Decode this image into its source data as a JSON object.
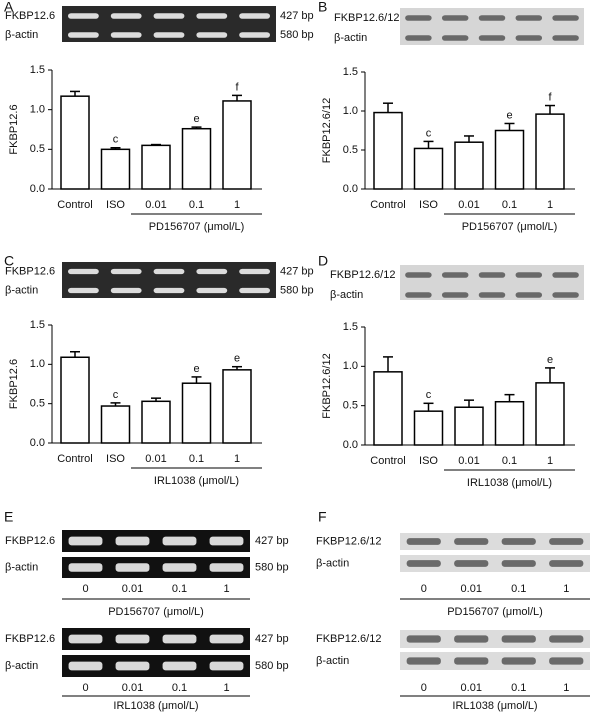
{
  "panel_letters": [
    "A",
    "B",
    "C",
    "D",
    "E",
    "F"
  ],
  "chart_data": [
    {
      "type": "bar",
      "ylabel": "FKBP12.6",
      "categories": [
        "Control",
        "ISO",
        "0.01",
        "0.1",
        "1"
      ],
      "values": [
        1.17,
        0.5,
        0.55,
        0.76,
        1.11
      ],
      "errors": [
        0.06,
        0.02,
        0.01,
        0.02,
        0.07
      ],
      "annotations": [
        null,
        "c",
        null,
        "e",
        "f"
      ],
      "group_label": "PD156707 (μmol/L)",
      "ylim": [
        0,
        1.5
      ],
      "yticks": [
        {
          "value": 0,
          "label": "0.0"
        },
        0.5,
        {
          "value": 1,
          "label": "1.0"
        },
        1.5
      ],
      "color": "#ffffff"
    },
    {
      "type": "bar",
      "ylabel": "FKBP12.6/12",
      "categories": [
        "Control",
        "ISO",
        "0.01",
        "0.1",
        "1"
      ],
      "values": [
        0.98,
        0.52,
        0.6,
        0.75,
        0.96
      ],
      "errors": [
        0.12,
        0.09,
        0.08,
        0.09,
        0.11
      ],
      "annotations": [
        null,
        "c",
        null,
        "e",
        "f"
      ],
      "group_label": "PD156707 (μmol/L)",
      "ylim": [
        0,
        1.5
      ],
      "yticks": [
        {
          "value": 0,
          "label": "0.0"
        },
        0.5,
        {
          "value": 1,
          "label": "1.0"
        },
        1.5
      ],
      "color": "#ffffff"
    },
    {
      "type": "bar",
      "ylabel": "FKBP12.6",
      "categories": [
        "Control",
        "ISO",
        "0.01",
        "0.1",
        "1"
      ],
      "values": [
        1.09,
        0.47,
        0.53,
        0.76,
        0.93
      ],
      "errors": [
        0.07,
        0.04,
        0.04,
        0.08,
        0.04
      ],
      "annotations": [
        null,
        "c",
        null,
        "e",
        "e"
      ],
      "group_label": "IRL1038 (μmol/L)",
      "ylim": [
        0,
        1.5
      ],
      "yticks": [
        {
          "value": 0,
          "label": "0.0"
        },
        0.5,
        {
          "value": 1,
          "label": "1.0"
        },
        1.5
      ],
      "color": "#ffffff"
    },
    {
      "type": "bar",
      "ylabel": "FKBP12.6/12",
      "categories": [
        "Control",
        "ISO",
        "0.01",
        "0.1",
        "1"
      ],
      "values": [
        0.93,
        0.43,
        0.48,
        0.55,
        0.79
      ],
      "errors": [
        0.19,
        0.1,
        0.09,
        0.09,
        0.19
      ],
      "annotations": [
        null,
        "c",
        null,
        null,
        "e"
      ],
      "group_label": "IRL1038 (μmol/L)",
      "ylim": [
        0,
        1.5
      ],
      "yticks": [
        {
          "value": 0,
          "label": "0.0"
        },
        0.5,
        {
          "value": 1,
          "label": "1.0"
        },
        1.5
      ],
      "color": "#ffffff"
    }
  ],
  "blots": [
    {
      "labels": [
        "FKBP12.6",
        "β-actin"
      ],
      "sizes": [
        "427 bp",
        "580 bp"
      ]
    },
    {
      "labels": [
        "FKBP12.6/12",
        "β-actin"
      ]
    },
    {
      "labels": [
        "FKBP12.6",
        "β-actin"
      ],
      "sizes": [
        "427 bp",
        "580 bp"
      ]
    },
    {
      "labels": [
        "FKBP12.6/12",
        "β-actin"
      ]
    },
    {
      "labels": [
        "FKBP12.6",
        "β-actin"
      ],
      "sizes": [
        "427 bp",
        "580 bp"
      ],
      "lanes": [
        "0",
        "0.01",
        "0.1",
        "1"
      ],
      "caption": "PD156707 (μmol/L)"
    },
    {
      "labels": [
        "FKBP12.6",
        "β-actin"
      ],
      "sizes": [
        "427 bp",
        "580 bp"
      ],
      "lanes": [
        "0",
        "0.01",
        "0.1",
        "1"
      ],
      "caption": "IRL1038 (μmol/L)"
    },
    {
      "labels": [
        "FKBP12.6/12",
        "β-actin"
      ],
      "lanes": [
        "0",
        "0.01",
        "0.1",
        "1"
      ],
      "caption": "PD156707 (μmol/L)"
    },
    {
      "labels": [
        "FKBP12.6/12",
        "β-actin"
      ],
      "lanes": [
        "0",
        "0.01",
        "0.1",
        "1"
      ],
      "caption": "IRL1038 (μmol/L)"
    }
  ]
}
